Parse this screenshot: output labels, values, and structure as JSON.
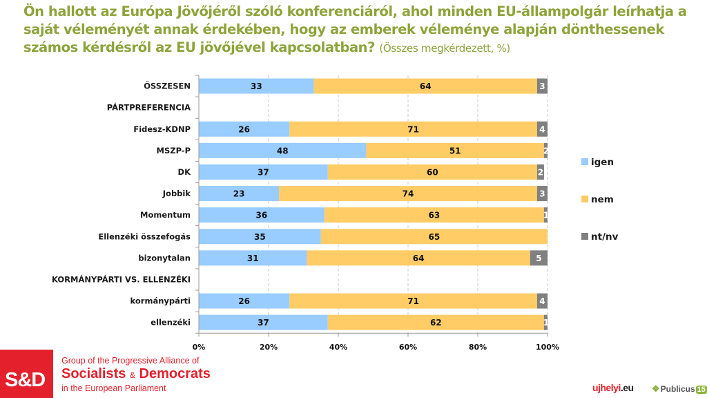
{
  "title": {
    "main": "Ön hallott az Európa Jövőjéről szóló konferenciáról, ahol minden EU-állampolgár leírhatja a saját véleményét annak érdekében, hogy az emberek véleménye alapján dönthessenek számos kérdésről az EU jövőjével kapcsolatban?",
    "sub": "(Összes megkérdezett, %)"
  },
  "chart_data": {
    "type": "bar",
    "orientation": "horizontal",
    "stacked": true,
    "percent_stacked": true,
    "title": "Ön hallott az Európa Jövőjéről szóló konferenciáról, ahol minden EU-állampolgár leírhatja a saját véleményét annak érdekében, hogy az emberek véleménye alapján dönthessenek számos kérdésről az EU jövőjével kapcsolatban? (Összes megkérdezett, %)",
    "xlabel": "",
    "ylabel": "",
    "xlim": [
      0,
      100
    ],
    "x_ticks": [
      "0%",
      "20%",
      "40%",
      "60%",
      "80%",
      "100%"
    ],
    "grid": "vertical dashed",
    "legend_position": "right",
    "categories": [
      "ÖSSZESEN",
      "PÁRTPREFERENCIA",
      "Fidesz-KDNP",
      "MSZP-P",
      "DK",
      "Jobbik",
      "Momentum",
      "Ellenzéki összefogás",
      "bizonytalan",
      "KORMÁNYPÁRTI VS. ELLENZÉKI",
      "kormánypárti",
      "ellenzéki"
    ],
    "category_headers": [
      "PÁRTPREFERENCIA",
      "KORMÁNYPÁRTI VS. ELLENZÉKI"
    ],
    "series": [
      {
        "name": "igen",
        "color": "#99ccff",
        "values": [
          33,
          null,
          26,
          48,
          37,
          23,
          36,
          35,
          31,
          null,
          26,
          37
        ]
      },
      {
        "name": "nem",
        "color": "#ffcc66",
        "values": [
          64,
          null,
          71,
          51,
          60,
          74,
          63,
          65,
          64,
          null,
          71,
          62
        ]
      },
      {
        "name": "nt/nv",
        "color": "#808080",
        "values": [
          3,
          null,
          4,
          2,
          2,
          3,
          1,
          0,
          5,
          null,
          4,
          1
        ]
      }
    ]
  },
  "footer": {
    "sd_logo": "S&D",
    "sd_line1": "Group of the Progressive Alliance of",
    "sd_line2a": "Socialists",
    "sd_amp": "&",
    "sd_line2b": "Democrats",
    "sd_line3": "in the European Parliament",
    "ujhelyi_a": "ujhelyi",
    "ujhelyi_b": ".eu",
    "publicus": "Publicus",
    "publicus_num": "15"
  }
}
